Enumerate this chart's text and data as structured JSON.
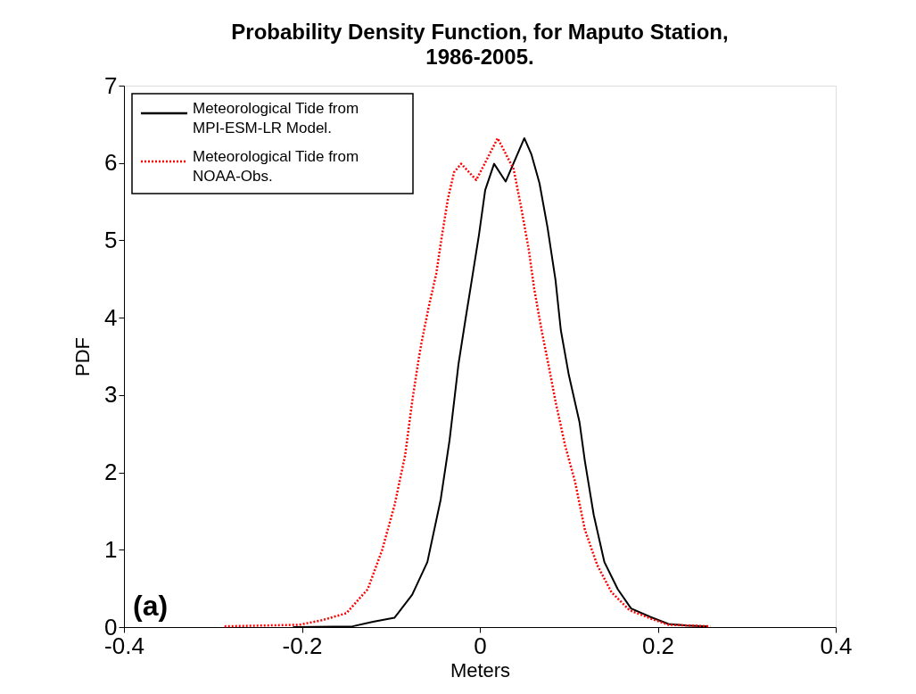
{
  "chart_data": {
    "type": "line",
    "title": "Probability Density Function, for Maputo Station, 1986-2005.",
    "xlabel": "Meters",
    "ylabel": "PDF",
    "xlim": [
      -0.4,
      0.4
    ],
    "xticks": [
      -0.4,
      -0.2,
      0,
      0.2,
      0.4
    ],
    "ylim": [
      0,
      7
    ],
    "yticks": [
      0,
      1,
      2,
      3,
      4,
      5,
      6,
      7
    ],
    "grid": false,
    "legend": "top left",
    "marker": "none",
    "annotations": [
      "(a)"
    ],
    "series": [
      {
        "name": "Meteorological Tide from MPI-ESM-LR Model.",
        "color": "#000000",
        "line_style": "solid",
        "x": [
          -0.21,
          -0.143,
          -0.12,
          -0.096,
          -0.076,
          -0.059,
          -0.044,
          -0.034,
          -0.024,
          -0.016,
          -0.009,
          -0.001,
          0.006,
          0.016,
          0.029,
          0.05,
          0.058,
          0.067,
          0.076,
          0.085,
          0.091,
          0.1,
          0.112,
          0.118,
          0.128,
          0.14,
          0.155,
          0.17,
          0.192,
          0.212,
          0.232,
          0.256
        ],
        "values": [
          0,
          0.01,
          0.07,
          0.12,
          0.42,
          0.84,
          1.65,
          2.42,
          3.4,
          3.99,
          4.49,
          5.07,
          5.65,
          5.99,
          5.76,
          6.32,
          6.11,
          5.74,
          5.17,
          4.49,
          3.84,
          3.26,
          2.65,
          2.15,
          1.45,
          0.84,
          0.49,
          0.24,
          0.13,
          0.04,
          0.02,
          0.01
        ]
      },
      {
        "name": "Meteorological Tide from NOAA-Obs.",
        "color": "#ff0000",
        "line_style": "dotted",
        "x": [
          -0.287,
          -0.203,
          -0.177,
          -0.15,
          -0.126,
          -0.11,
          -0.096,
          -0.084,
          -0.076,
          -0.069,
          -0.066,
          -0.058,
          -0.049,
          -0.043,
          -0.036,
          -0.029,
          -0.021,
          -0.004,
          0.02,
          0.038,
          0.046,
          0.055,
          0.061,
          0.07,
          0.077,
          0.085,
          0.096,
          0.107,
          0.118,
          0.132,
          0.148,
          0.168,
          0.192,
          0.212,
          0.259
        ],
        "values": [
          0.01,
          0.03,
          0.09,
          0.18,
          0.49,
          0.99,
          1.57,
          2.22,
          2.92,
          3.45,
          3.65,
          4.11,
          4.57,
          5.03,
          5.53,
          5.88,
          5.99,
          5.78,
          6.32,
          5.92,
          5.45,
          4.88,
          4.38,
          3.8,
          3.4,
          2.92,
          2.34,
          1.88,
          1.26,
          0.8,
          0.45,
          0.22,
          0.11,
          0.03,
          0.01
        ]
      }
    ]
  }
}
